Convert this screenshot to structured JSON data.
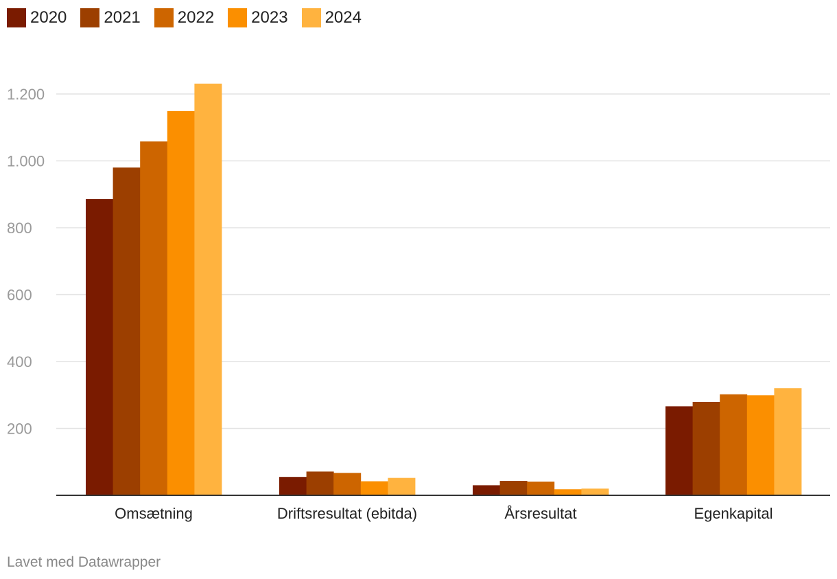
{
  "chart_data": {
    "type": "bar",
    "categories": [
      "Omsætning",
      "Driftsresultat (ebitda)",
      "Årsresultat",
      "Egenkapital"
    ],
    "series": [
      {
        "name": "2020",
        "color": "#7a1b00",
        "values": [
          886,
          55,
          30,
          266
        ]
      },
      {
        "name": "2021",
        "color": "#9c3f00",
        "values": [
          980,
          71,
          43,
          279
        ]
      },
      {
        "name": "2022",
        "color": "#cd6500",
        "values": [
          1058,
          67,
          41,
          302
        ]
      },
      {
        "name": "2023",
        "color": "#fb8f00",
        "values": [
          1149,
          42,
          18,
          299
        ]
      },
      {
        "name": "2024",
        "color": "#ffb33f",
        "values": [
          1231,
          52,
          20,
          320
        ]
      }
    ],
    "yticks": [
      "200",
      "400",
      "600",
      "800",
      "1.000",
      "1.200"
    ],
    "ytick_values": [
      200,
      400,
      600,
      800,
      1000,
      1200
    ],
    "ylim": [
      0,
      1231
    ],
    "grid": true,
    "legend_position": "top-left"
  },
  "footer": "Lavet med Datawrapper"
}
